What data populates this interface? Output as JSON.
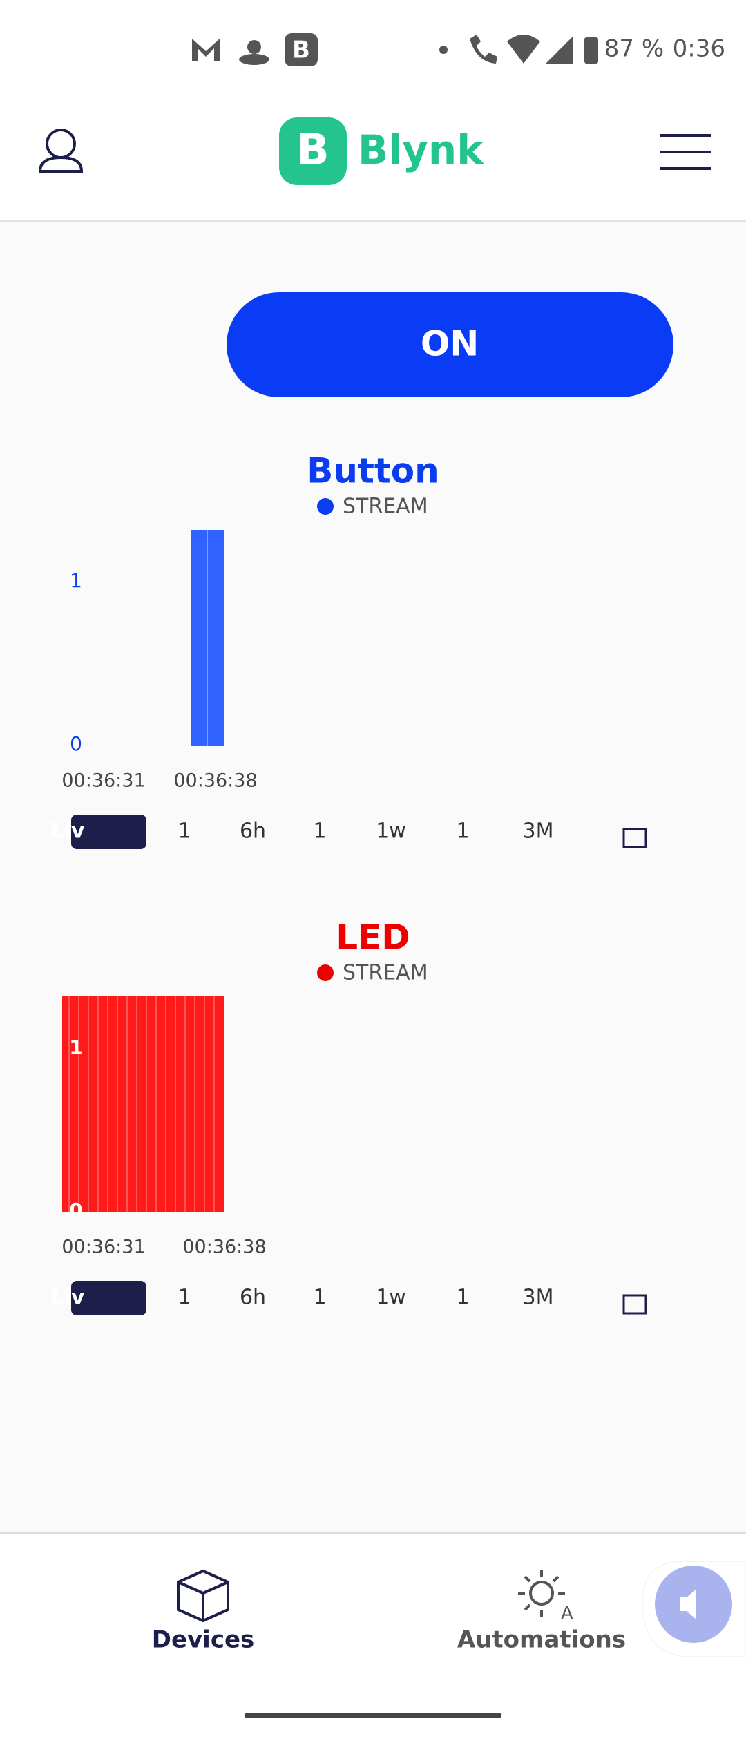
{
  "status": {
    "battery": "87 %",
    "time": "0:36"
  },
  "header": {
    "logo": "B",
    "brand": "Blynk"
  },
  "switch": {
    "label": "ON"
  },
  "charts": [
    {
      "title": "Button",
      "legend": "STREAM",
      "y_labels": [
        "1",
        "0"
      ],
      "x_labels": [
        "00:36:31",
        "00:36:38"
      ],
      "ranges": [
        "Liv",
        "1",
        "6h",
        "1",
        "1w",
        "1",
        "3M"
      ]
    },
    {
      "title": "LED",
      "legend": "STREAM",
      "y_labels": [
        "1",
        "0"
      ],
      "x_labels": [
        "00:36:31",
        "00:36:38"
      ],
      "ranges": [
        "Liv",
        "1",
        "6h",
        "1",
        "1w",
        "1",
        "3M"
      ]
    }
  ],
  "nav": [
    "Devices",
    "Automations"
  ]
}
